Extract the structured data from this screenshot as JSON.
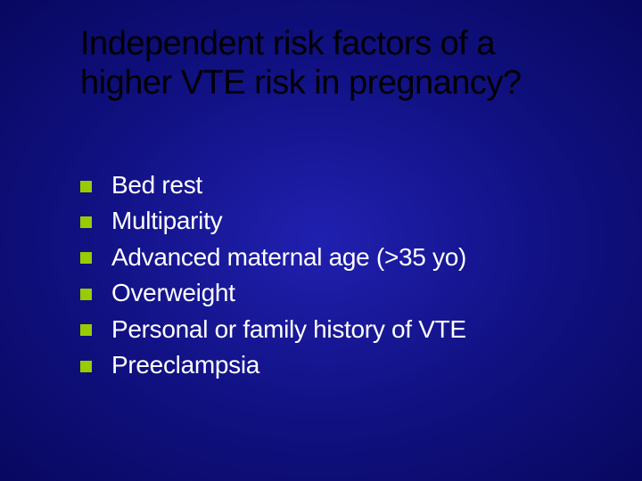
{
  "slide": {
    "title": "Independent risk factors of a higher VTE risk in pregnancy?",
    "title_color": "#000000",
    "title_fontsize": 38,
    "background_center": "#2020b0",
    "background_edge": "#080860",
    "bullet_marker_color": "#99cc00",
    "bullet_marker_size": 13,
    "bullet_text_color": "#ffffff",
    "bullet_fontsize": 28,
    "bullets": [
      "Bed rest",
      "Multiparity",
      "Advanced maternal age (>35 yo)",
      "Overweight",
      "Personal or family history of VTE",
      "Preeclampsia"
    ]
  }
}
